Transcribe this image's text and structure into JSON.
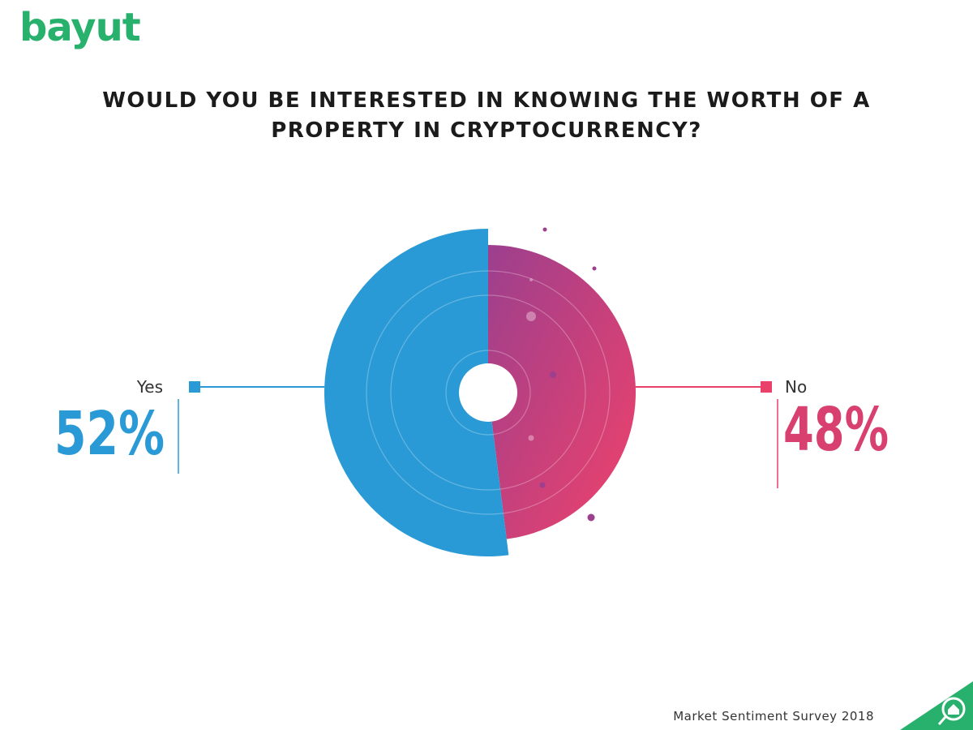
{
  "brand": {
    "logo_text": "bayut",
    "logo_color": "#28b16d"
  },
  "title": {
    "line1": "WOULD YOU BE INTERESTED IN KNOWING THE WORTH OF A",
    "line2": "PROPERTY IN CRYPTOCURRENCY?"
  },
  "chart_data": {
    "type": "pie",
    "style": "donut",
    "title": "WOULD YOU BE INTERESTED IN KNOWING THE WORTH OF A PROPERTY IN CRYPTOCURRENCY?",
    "categories": [
      "Yes",
      "No"
    ],
    "values": [
      52,
      48
    ],
    "labels": [
      "52%",
      "48%"
    ],
    "colors": [
      "#2a9ad6",
      "#e9416a"
    ],
    "gradient_no": [
      "#9c3f8e",
      "#f0426a"
    ],
    "legend": "left and right callouts"
  },
  "footer": {
    "text": "Market Sentiment Survey 2018",
    "corner_icon": "house-search-icon",
    "corner_color": "#28b16d"
  }
}
